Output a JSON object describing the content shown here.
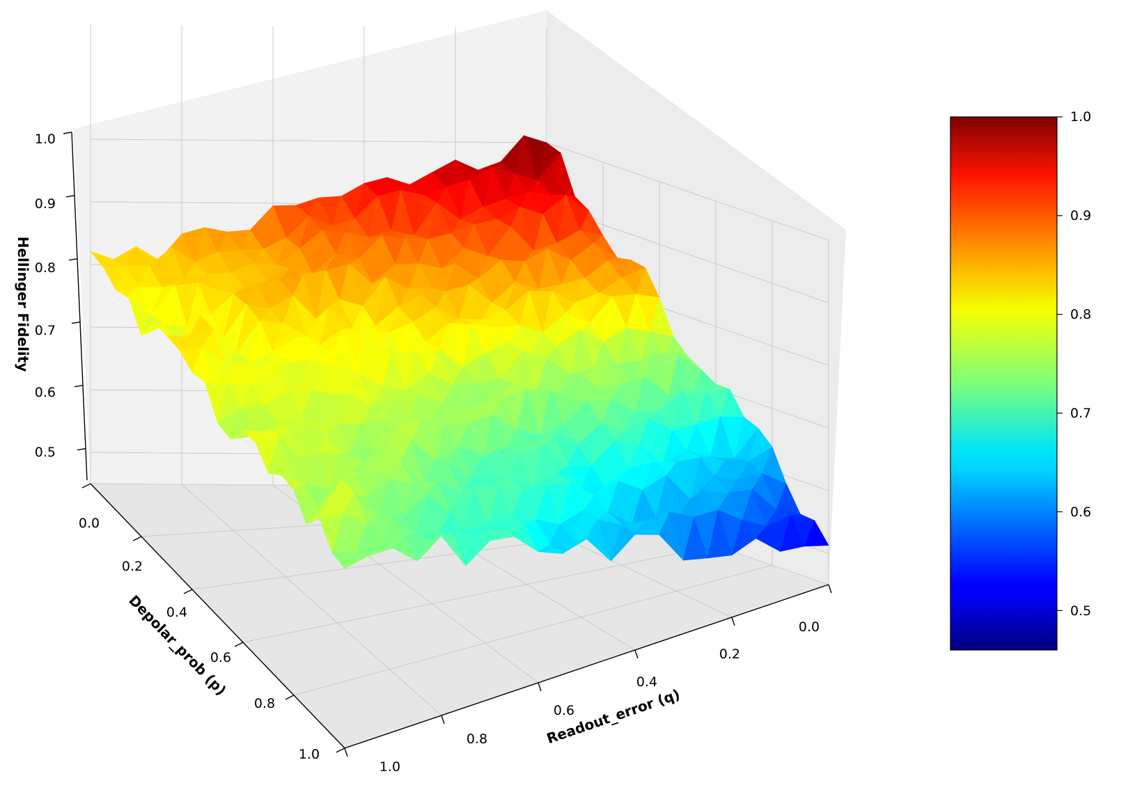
{
  "chart_data": {
    "type": "surface3d",
    "colormap": "jet",
    "zlabel": "Hellinger Fidelity",
    "ylabel": "Depolar_prob (p)",
    "xlabel": "Readout_error (q)",
    "p_ticks": [
      "0.0",
      "0.2",
      "0.4",
      "0.6",
      "0.8",
      "1.0"
    ],
    "q_ticks": [
      "0.0",
      "0.2",
      "0.4",
      "0.6",
      "0.8",
      "1.0"
    ],
    "z_ticks": [
      "0.5",
      "0.6",
      "0.7",
      "0.8",
      "0.9",
      "1.0"
    ],
    "colorbar_ticks": [
      "0.5",
      "0.6",
      "0.7",
      "0.8",
      "0.9",
      "1.0"
    ],
    "p_range": [
      0.0,
      1.0
    ],
    "q_range": [
      0.0,
      1.0
    ],
    "zlim": [
      0.45,
      1.0
    ],
    "color_range": [
      0.46,
      1.0
    ],
    "grid": true,
    "grid_size": 21,
    "corner_values": {
      "p0_q0": 1.0,
      "p1_q0": 0.52,
      "p0_q1": 0.8,
      "p1_q1": 0.76
    }
  }
}
